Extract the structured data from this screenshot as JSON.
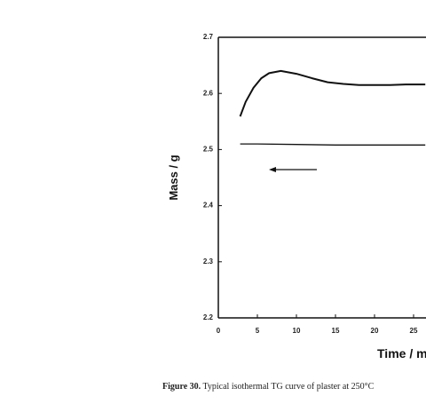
{
  "chart_data": {
    "type": "line",
    "x_label": "Time / m",
    "y_label": "Mass / g",
    "caption_label": "Figure 30.",
    "caption": "Typical isothermal TG curve of plaster at 250°C",
    "xlim": [
      0,
      30
    ],
    "xticks": [
      0,
      5,
      10,
      15,
      20,
      25
    ],
    "ylim": [
      2.2,
      2.7
    ],
    "yticks": [
      {
        "value": 2.2,
        "label": "2.2"
      },
      {
        "value": 2.3,
        "label": "2.3"
      },
      {
        "value": 2.4,
        "label": "2.4"
      },
      {
        "value": 2.5,
        "label": "2.5"
      },
      {
        "value": 2.6,
        "label": "2.6"
      },
      {
        "value": 2.7,
        "label": "2.7"
      }
    ],
    "series": [
      {
        "color": "#111111",
        "width": 2,
        "x": [
          2.8,
          3.5,
          4.5,
          5.5,
          6.5,
          8,
          10,
          12,
          14,
          16,
          18,
          20,
          22,
          24,
          26.5
        ],
        "values": [
          2.559,
          2.585,
          2.61,
          2.627,
          2.636,
          2.64,
          2.635,
          2.627,
          2.62,
          2.617,
          2.615,
          2.615,
          2.615,
          2.616,
          2.616
        ]
      },
      {
        "color": "#111111",
        "width": 1.3,
        "x": [
          2.8,
          5,
          10,
          15,
          20,
          25,
          26.5
        ],
        "values": [
          2.51,
          2.51,
          2.509,
          2.508,
          2.508,
          2.508,
          2.508
        ]
      }
    ]
  }
}
